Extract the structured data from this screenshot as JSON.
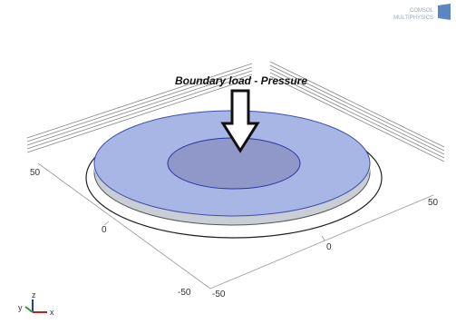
{
  "logo": {
    "line1": "COMSOL",
    "line2": "MULTIPHYSICS"
  },
  "annotation": "Boundary load - Pressure",
  "axes": {
    "left_ticks": [
      "50",
      "0",
      "-50"
    ],
    "right_ticks": [
      "50",
      "0",
      "-50"
    ]
  },
  "triad": {
    "x": "x",
    "y": "y",
    "z": "z"
  }
}
